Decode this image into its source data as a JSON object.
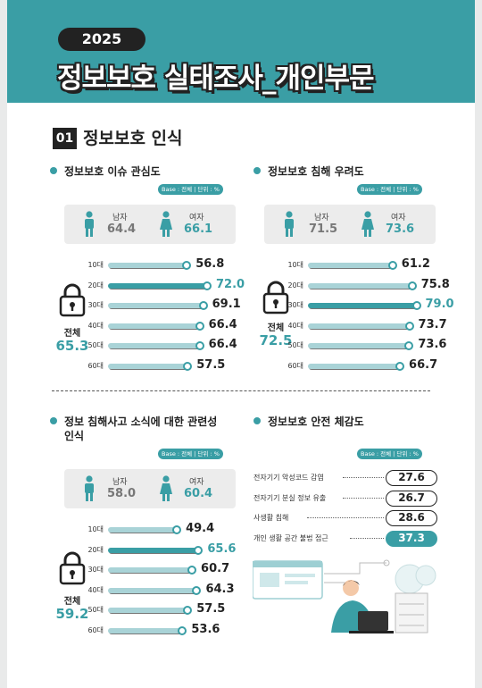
{
  "header": {
    "year": "2025",
    "title": "정보보호 실태조사_개인부문"
  },
  "section": {
    "number": "01",
    "title": "정보보호 인식"
  },
  "base_label": "Base : 전체 | 단위 : %",
  "gender_labels": {
    "male": "남자",
    "female": "여자"
  },
  "total_label": "전체",
  "colors": {
    "accent": "#3a9ea5",
    "dark": "#222222",
    "light_bar": "#a9d3d7"
  },
  "panels": {
    "interest": {
      "title": "정보보호 이슈 관심도",
      "male": "64.4",
      "female": "66.1",
      "total": "65.3",
      "ages": [
        {
          "age": "10대",
          "value": "56.8"
        },
        {
          "age": "20대",
          "value": "72.0"
        },
        {
          "age": "30대",
          "value": "69.1"
        },
        {
          "age": "40대",
          "value": "66.4"
        },
        {
          "age": "50대",
          "value": "66.4"
        },
        {
          "age": "60대",
          "value": "57.5"
        }
      ]
    },
    "concern": {
      "title": "정보보호 침해 우려도",
      "male": "71.5",
      "female": "73.6",
      "total": "72.5",
      "ages": [
        {
          "age": "10대",
          "value": "61.2"
        },
        {
          "age": "20대",
          "value": "75.8"
        },
        {
          "age": "30대",
          "value": "79.0"
        },
        {
          "age": "40대",
          "value": "73.7"
        },
        {
          "age": "50대",
          "value": "73.6"
        },
        {
          "age": "60대",
          "value": "66.7"
        }
      ]
    },
    "news": {
      "title": "정보 침해사고 소식에 대한 관련성 인식",
      "male": "58.0",
      "female": "60.4",
      "total": "59.2",
      "ages": [
        {
          "age": "10대",
          "value": "49.4"
        },
        {
          "age": "20대",
          "value": "65.6"
        },
        {
          "age": "30대",
          "value": "60.7"
        },
        {
          "age": "40대",
          "value": "64.3"
        },
        {
          "age": "50대",
          "value": "57.5"
        },
        {
          "age": "60대",
          "value": "53.6"
        }
      ]
    },
    "safety": {
      "title": "정보보호 안전 체감도",
      "items": [
        {
          "label": "전자기기 악성코드 감염",
          "value": "27.6"
        },
        {
          "label": "전자기기 분실 정보 유출",
          "value": "26.7"
        },
        {
          "label": "사생활 침해",
          "value": "28.6"
        },
        {
          "label": "개인 생활 공간 불법 접근",
          "value": "37.3"
        }
      ]
    }
  }
}
